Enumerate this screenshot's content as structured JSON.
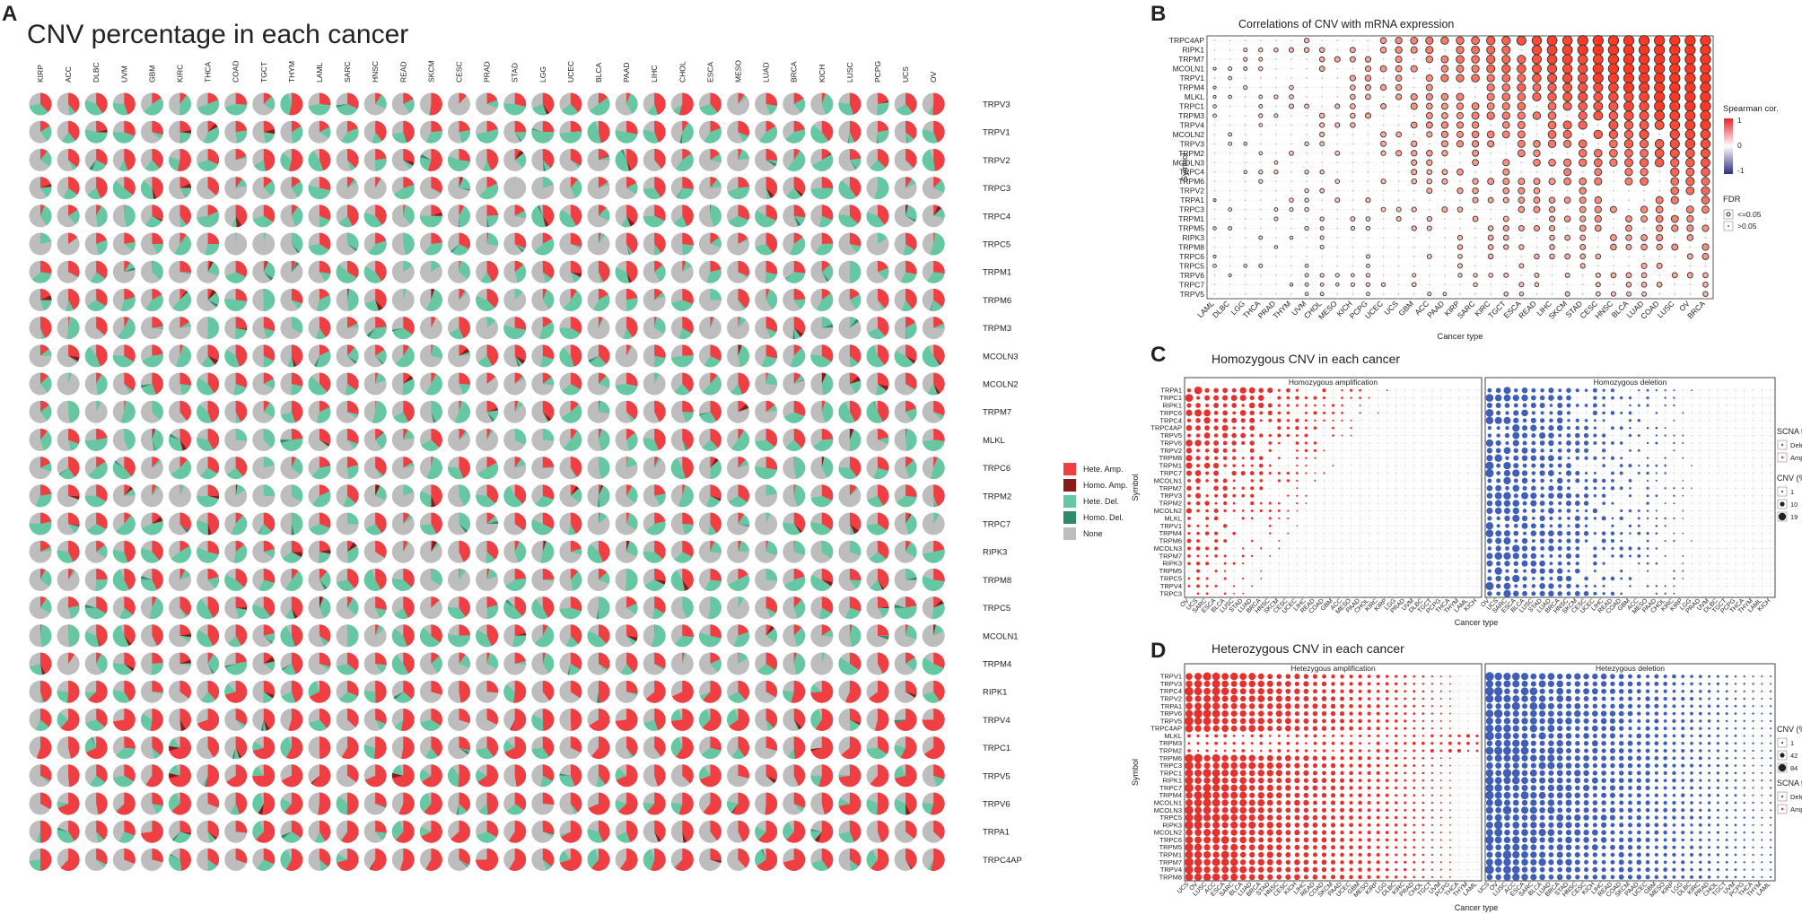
{
  "panels": {
    "A": {
      "letter": "A",
      "title": "CNV percentage in each cancer"
    },
    "B": {
      "letter": "B",
      "title": "Correlations of CNV with mRNA expression"
    },
    "C": {
      "letter": "C",
      "title": "Homozygous CNV in each cancer"
    },
    "D": {
      "letter": "D",
      "title": "Heterozygous CNV in each cancer"
    }
  },
  "colors": {
    "hete_amp": "#ef3f42",
    "homo_amp": "#8b1a1a",
    "hete_del": "#66c8a3",
    "homo_del": "#2f8a6c",
    "none": "#bdbdbd",
    "amp_dot": "#e5312e",
    "del_dot": "#3f5fb7"
  },
  "legendA": [
    {
      "label": "Hete. Amp.",
      "key": "hete_amp"
    },
    {
      "label": "Homo. Amp.",
      "key": "homo_amp"
    },
    {
      "label": "Hete. Del.",
      "key": "hete_del"
    },
    {
      "label": "Homo. Del.",
      "key": "homo_del"
    },
    {
      "label": "None",
      "key": "none"
    }
  ],
  "chart_data": [
    {
      "id": "A",
      "type": "pie-grid",
      "title": "CNV percentage in each cancer",
      "cancers": [
        "KIRP",
        "ACC",
        "DLBC",
        "UVM",
        "GBM",
        "KIRC",
        "THCA",
        "COAD",
        "TGCT",
        "THYM",
        "LAML",
        "SARC",
        "HNSC",
        "READ",
        "SKCM",
        "CESC",
        "PRAD",
        "STAD",
        "LGG",
        "UCEC",
        "BLCA",
        "PAAD",
        "LIHC",
        "CHOL",
        "ESCA",
        "MESO",
        "LUAD",
        "BRCA",
        "KICH",
        "LUSC",
        "PCPG",
        "UCS",
        "OV"
      ],
      "genes": [
        "TRPV3",
        "TRPV1",
        "TRPV2",
        "TRPC3",
        "TRPC4",
        "TRPC5",
        "TRPM1",
        "TRPM6",
        "TRPM3",
        "MCOLN3",
        "MCOLN2",
        "TRPM7",
        "MLKL",
        "TRPC6",
        "TRPM2",
        "TRPC7",
        "RIPK3",
        "TRPM8",
        "TRPC5",
        "MCOLN1",
        "TRPM4",
        "RIPK1",
        "TRPV4",
        "TRPC1",
        "TRPV5",
        "TRPV6",
        "TRPA1",
        "TRPC4AP"
      ],
      "categories": [
        "Hete. Amp.",
        "Homo. Amp.",
        "Hete. Del.",
        "Homo. Del.",
        "None"
      ]
    },
    {
      "id": "B",
      "type": "bubble-heatmap",
      "title": "Correlations of CNV with mRNA expression",
      "xlabel": "Cancer type",
      "ylabel": "Symbol",
      "x": [
        "LAML",
        "DLBC",
        "LGG",
        "THCA",
        "PRAD",
        "THYM",
        "UVM",
        "CHOL",
        "MESO",
        "KICH",
        "PCPG",
        "UCEC",
        "UCS",
        "GBM",
        "ACC",
        "PAAD",
        "KIRP",
        "SARC",
        "KIRC",
        "TGCT",
        "ESCA",
        "READ",
        "LIHC",
        "SKCM",
        "STAD",
        "CESC",
        "HNSC",
        "BLCA",
        "LUAD",
        "COAD",
        "LUSC",
        "OV",
        "BRCA"
      ],
      "y": [
        "TRPC4AP",
        "RIPK1",
        "TRPM7",
        "MCOLN1",
        "TRPV1",
        "TRPM4",
        "MLKL",
        "TRPC1",
        "TRPM3",
        "TRPV4",
        "MCOLN2",
        "TRPV3",
        "TRPM2",
        "MCOLN3",
        "TRPC4",
        "TRPM6",
        "TRPV2",
        "TRPA1",
        "TRPC3",
        "TRPM1",
        "TRPM5",
        "RIPK3",
        "TRPM8",
        "TRPC6",
        "TRPC5",
        "TRPV6",
        "TRPC7",
        "TRPV5"
      ],
      "legend": {
        "color_title": "Spearman cor.",
        "color_ticks": [
          "1",
          "0",
          "-1"
        ],
        "size_title": "FDR",
        "size_items": [
          "<=0.05",
          ">0.05"
        ]
      }
    },
    {
      "id": "C",
      "type": "bubble-heatmap",
      "title": "Homozygous CNV in each cancer",
      "xlabel": "Cancer type",
      "ylabel": "Symbol",
      "subpanels": [
        "Homozygous amplification",
        "Homozygous deletion"
      ],
      "y": [
        "TRPA1",
        "TRPC1",
        "RIPK1",
        "TRPC6",
        "TRPC4",
        "TRPC4AP",
        "TRPV5",
        "TRPV6",
        "TRPV2",
        "TRPM8",
        "TRPM1",
        "TRPC7",
        "MCOLN1",
        "TRPM7",
        "TRPV3",
        "TRPM2",
        "MCOLN2",
        "MLKL",
        "TRPV1",
        "TRPM4",
        "TRPM6",
        "MCOLN3",
        "TRPM7",
        "RIPK3",
        "TRPM5",
        "TRPC5",
        "TRPV4",
        "TRPC3"
      ],
      "x": [
        "OV",
        "UCS",
        "SARC",
        "ESCA",
        "BLCA",
        "LUSC",
        "STAD",
        "LUAD",
        "BRCA",
        "HNSC",
        "SKCM",
        "CESC",
        "UCEC",
        "LIHC",
        "READ",
        "COAD",
        "GBM",
        "ACC",
        "MESO",
        "PAAD",
        "CHOL",
        "KIRC",
        "KIRP",
        "LGG",
        "PRAD",
        "UVM",
        "DLBC",
        "TGCT",
        "PCPG",
        "THCA",
        "THYM",
        "LAML",
        "KICH"
      ],
      "legend": {
        "type_title": "SCNA type",
        "type_items": [
          "Deletion",
          "Amplification"
        ],
        "size_title": "CNV (%)",
        "size_ticks": [
          1,
          10,
          19
        ]
      }
    },
    {
      "id": "D",
      "type": "bubble-heatmap",
      "title": "Heterozygous CNV in each cancer",
      "xlabel": "Cancer type",
      "ylabel": "Symbol",
      "subpanels": [
        "Hetezygous amplification",
        "Hetezygous deletion"
      ],
      "y": [
        "TRPV1",
        "TRPV3",
        "TRPC4",
        "TRPV2",
        "TRPA1",
        "TRPV6",
        "TRPV5",
        "TRPC4AP",
        "MLKL",
        "TRPM3",
        "TRPM2",
        "TRPM6",
        "TRPC3",
        "TRPC1",
        "RIPK1",
        "TRPC7",
        "TRPM4",
        "MCOLN1",
        "MCOLN3",
        "TRPC5",
        "RIPK3",
        "MCOLN2",
        "TRPC6",
        "TRPM5",
        "TRPM1",
        "TRPM7",
        "TRPV4",
        "TRPM8"
      ],
      "x": [
        "UCS",
        "OV",
        "LUSC",
        "ACC",
        "ESCA",
        "SARC",
        "BLCA",
        "LUAD",
        "BRCA",
        "STAD",
        "HNSC",
        "CESC",
        "KICH",
        "LIHC",
        "READ",
        "COAD",
        "SKCM",
        "PAAD",
        "UCEC",
        "GBM",
        "MESO",
        "KIRP",
        "LGG",
        "DLBC",
        "KIRC",
        "PRAD",
        "CHOL",
        "TGCT",
        "UVM",
        "PCPG",
        "THCA",
        "THYM",
        "LAML"
      ],
      "legend": {
        "size_title": "CNV (%)",
        "size_ticks": [
          1,
          42,
          84
        ],
        "type_title": "SCNA type",
        "type_items": [
          "Deletion",
          "Amplification"
        ]
      }
    }
  ]
}
